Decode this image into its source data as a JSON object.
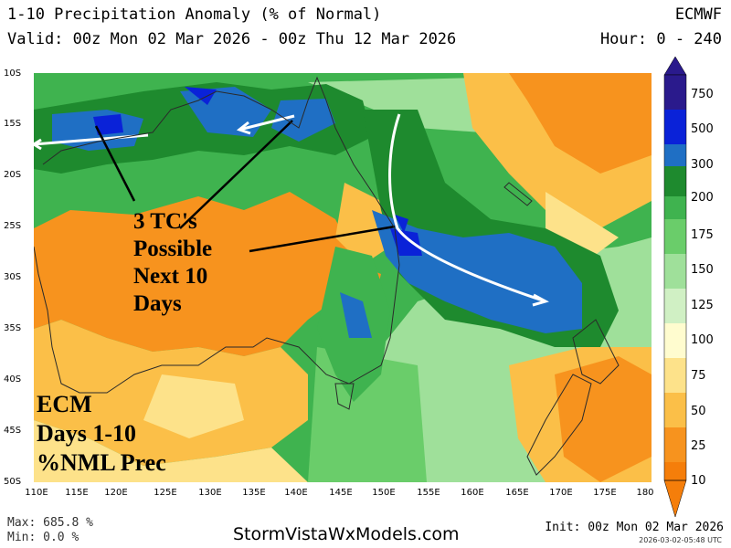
{
  "header": {
    "title": "1-10 Precipitation Anomaly (% of Normal)",
    "valid": "Valid: 00z Mon 02 Mar 2026 - 00z Thu 12 Mar 2026",
    "model": "ECMWF",
    "hour": "Hour: 0 - 240"
  },
  "axes": {
    "lat_labels": [
      "10S",
      "15S",
      "20S",
      "25S",
      "30S",
      "35S",
      "40S",
      "45S",
      "50S"
    ],
    "lon_labels": [
      "110E",
      "115E",
      "120E",
      "125E",
      "130E",
      "135E",
      "140E",
      "145E",
      "150E",
      "155E",
      "160E",
      "165E",
      "170E",
      "175E",
      "180"
    ]
  },
  "colorbar": {
    "labels": [
      "750",
      "500",
      "300",
      "200",
      "175",
      "150",
      "125",
      "100",
      "75",
      "50",
      "25",
      "10"
    ],
    "colors": [
      "#2a1a8c",
      "#0a22d8",
      "#1f6fc4",
      "#1e8a2e",
      "#3fb34f",
      "#6acd6a",
      "#9fe09a",
      "#d0f0c4",
      "#fffccf",
      "#fde28a",
      "#fbbf48",
      "#f7931e",
      "#f57e0a"
    ]
  },
  "annotations": {
    "tc_line1": "3 TC's",
    "tc_line2": "Possible",
    "tc_line3": "Next 10",
    "tc_line4": "Days",
    "ecm_line1": "ECM",
    "ecm_line2": "Days 1-10",
    "ecm_line3": "%NML Prec"
  },
  "footer": {
    "max": "Max: 685.8 %",
    "min": "Min: 0.0 %",
    "website": "StormVistaWxModels.com",
    "init": "Init: 00z Mon 02 Mar 2026",
    "stamp": "2026-03-02-05:48 UTC"
  }
}
